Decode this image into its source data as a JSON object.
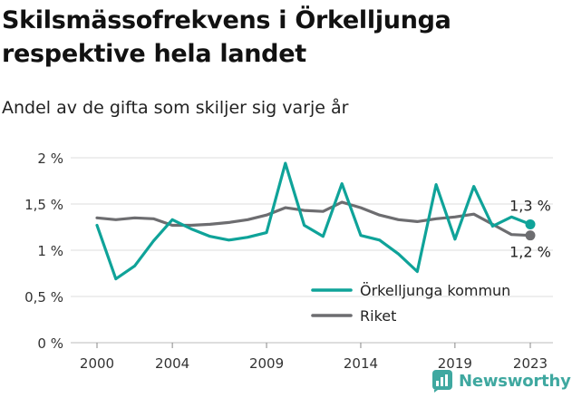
{
  "header": {
    "title": "Skilsmässofrekvens i Örkelljunga respektive hela landet",
    "subtitle": "Andel av de gifta som skiljer sig varje år"
  },
  "brand": {
    "name": "Newsworthy"
  },
  "colors": {
    "orkelljunga": "#0fa399",
    "riket": "#6d6d70",
    "grid": "#dddddd"
  },
  "chart_data": {
    "type": "line",
    "x": [
      2000,
      2001,
      2002,
      2003,
      2004,
      2005,
      2006,
      2007,
      2008,
      2009,
      2010,
      2011,
      2012,
      2013,
      2014,
      2015,
      2016,
      2017,
      2018,
      2019,
      2020,
      2021,
      2022,
      2023
    ],
    "x_ticks": [
      2000,
      2004,
      2009,
      2014,
      2019,
      2023
    ],
    "y_ticks": [
      {
        "value": 0,
        "label": "0 %"
      },
      {
        "value": 0.5,
        "label": "0,5 %"
      },
      {
        "value": 1,
        "label": "1 %"
      },
      {
        "value": 1.5,
        "label": "1,5 %"
      },
      {
        "value": 2,
        "label": "2 %"
      }
    ],
    "ylim": [
      0,
      2
    ],
    "grid": true,
    "legend_position": "bottom-right",
    "series": [
      {
        "name": "Örkelljunga kommun",
        "color": "#0fa399",
        "values": [
          1.27,
          0.69,
          0.83,
          1.1,
          1.33,
          1.23,
          1.15,
          1.11,
          1.14,
          1.19,
          1.94,
          1.27,
          1.15,
          1.72,
          1.16,
          1.11,
          0.96,
          0.77,
          1.71,
          1.12,
          1.69,
          1.26,
          1.36,
          1.28
        ],
        "end_label": "1,3 %"
      },
      {
        "name": "Riket",
        "color": "#6d6d70",
        "values": [
          1.35,
          1.33,
          1.35,
          1.34,
          1.27,
          1.27,
          1.28,
          1.3,
          1.33,
          1.38,
          1.46,
          1.43,
          1.42,
          1.52,
          1.46,
          1.38,
          1.33,
          1.31,
          1.34,
          1.36,
          1.39,
          1.28,
          1.17,
          1.16
        ],
        "end_label": "1,2 %"
      }
    ]
  }
}
